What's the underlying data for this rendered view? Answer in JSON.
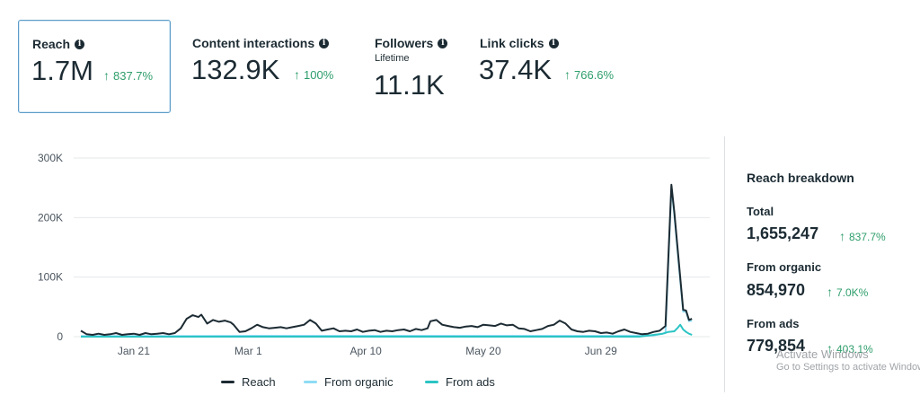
{
  "metrics": [
    {
      "label": "Reach",
      "value": "1.7M",
      "change": "837.7%",
      "selected": true
    },
    {
      "label": "Content interactions",
      "value": "132.9K",
      "change": "100%"
    },
    {
      "label": "Followers",
      "sublabel": "Lifetime",
      "value": "11.1K"
    },
    {
      "label": "Link clicks",
      "value": "37.4K",
      "change": "766.6%"
    }
  ],
  "colors": {
    "reach": "#1c2b33",
    "organic": "#8fdcf5",
    "ads": "#2cc4c4",
    "positive": "#2e9e6b"
  },
  "chart_data": {
    "type": "line",
    "xlabel": "",
    "ylabel": "",
    "y_ticks": [
      "0",
      "100K",
      "200K",
      "300K"
    ],
    "ylim": [
      0,
      300000
    ],
    "x_ticks": [
      {
        "label": "Jan 21",
        "day": 18
      },
      {
        "label": "Mar 1",
        "day": 57
      },
      {
        "label": "Apr 10",
        "day": 97
      },
      {
        "label": "May 20",
        "day": 137
      },
      {
        "label": "Jun 29",
        "day": 177
      }
    ],
    "xlim": [
      0,
      202
    ],
    "grid": true,
    "legend": "bottom",
    "series": [
      {
        "name": "Reach",
        "color": "#1c2b33",
        "points": [
          [
            0,
            10000
          ],
          [
            2,
            4000
          ],
          [
            4,
            3000
          ],
          [
            6,
            5000
          ],
          [
            8,
            3000
          ],
          [
            10,
            4000
          ],
          [
            12,
            6000
          ],
          [
            14,
            3000
          ],
          [
            16,
            4000
          ],
          [
            18,
            5000
          ],
          [
            20,
            3000
          ],
          [
            22,
            6000
          ],
          [
            24,
            4000
          ],
          [
            26,
            5000
          ],
          [
            28,
            6000
          ],
          [
            30,
            4000
          ],
          [
            32,
            6000
          ],
          [
            34,
            14000
          ],
          [
            36,
            30000
          ],
          [
            38,
            36000
          ],
          [
            40,
            33000
          ],
          [
            41,
            37000
          ],
          [
            43,
            22000
          ],
          [
            45,
            28000
          ],
          [
            47,
            25000
          ],
          [
            49,
            27000
          ],
          [
            51,
            24000
          ],
          [
            52,
            20000
          ],
          [
            54,
            8000
          ],
          [
            56,
            9000
          ],
          [
            58,
            14000
          ],
          [
            60,
            20000
          ],
          [
            62,
            16000
          ],
          [
            64,
            14000
          ],
          [
            66,
            15000
          ],
          [
            68,
            16000
          ],
          [
            70,
            14000
          ],
          [
            72,
            16000
          ],
          [
            74,
            18000
          ],
          [
            76,
            20000
          ],
          [
            78,
            28000
          ],
          [
            80,
            22000
          ],
          [
            82,
            10000
          ],
          [
            84,
            12000
          ],
          [
            86,
            14000
          ],
          [
            88,
            9000
          ],
          [
            90,
            10000
          ],
          [
            92,
            9000
          ],
          [
            94,
            12000
          ],
          [
            96,
            8000
          ],
          [
            98,
            10000
          ],
          [
            100,
            11000
          ],
          [
            102,
            8000
          ],
          [
            104,
            10000
          ],
          [
            106,
            9000
          ],
          [
            108,
            11000
          ],
          [
            110,
            12000
          ],
          [
            112,
            9000
          ],
          [
            114,
            13000
          ],
          [
            116,
            11000
          ],
          [
            118,
            14000
          ],
          [
            119,
            26000
          ],
          [
            121,
            28000
          ],
          [
            123,
            20000
          ],
          [
            125,
            18000
          ],
          [
            127,
            16000
          ],
          [
            129,
            15000
          ],
          [
            131,
            17000
          ],
          [
            133,
            18000
          ],
          [
            135,
            16000
          ],
          [
            137,
            20000
          ],
          [
            139,
            19000
          ],
          [
            141,
            18000
          ],
          [
            143,
            22000
          ],
          [
            145,
            19000
          ],
          [
            147,
            20000
          ],
          [
            149,
            14000
          ],
          [
            151,
            13000
          ],
          [
            153,
            9000
          ],
          [
            155,
            11000
          ],
          [
            157,
            13000
          ],
          [
            159,
            18000
          ],
          [
            161,
            20000
          ],
          [
            163,
            27000
          ],
          [
            165,
            22000
          ],
          [
            167,
            12000
          ],
          [
            169,
            9000
          ],
          [
            171,
            8000
          ],
          [
            173,
            10000
          ],
          [
            175,
            9000
          ],
          [
            177,
            6000
          ],
          [
            179,
            7000
          ],
          [
            181,
            5000
          ],
          [
            183,
            9000
          ],
          [
            185,
            12000
          ],
          [
            187,
            8000
          ],
          [
            189,
            6000
          ],
          [
            191,
            4000
          ],
          [
            193,
            5000
          ],
          [
            195,
            8000
          ],
          [
            197,
            10000
          ],
          [
            199,
            18000
          ],
          [
            201,
            255000
          ],
          [
            202,
            210000
          ],
          [
            204,
            100000
          ],
          [
            205,
            45000
          ],
          [
            206,
            44000
          ],
          [
            207,
            28000
          ],
          [
            208,
            30000
          ]
        ]
      },
      {
        "name": "From organic",
        "color": "#8fdcf5",
        "points": [
          [
            0,
            1000
          ],
          [
            30,
            1200
          ],
          [
            60,
            1500
          ],
          [
            90,
            1500
          ],
          [
            120,
            1500
          ],
          [
            150,
            1500
          ],
          [
            180,
            1500
          ],
          [
            195,
            2000
          ],
          [
            199,
            6000
          ],
          [
            201,
            250000
          ],
          [
            202,
            205000
          ],
          [
            204,
            95000
          ],
          [
            205,
            42000
          ],
          [
            206,
            42000
          ],
          [
            207,
            26000
          ],
          [
            208,
            27000
          ]
        ]
      },
      {
        "name": "From ads",
        "color": "#2cc4c4",
        "points": [
          [
            0,
            0
          ],
          [
            190,
            0
          ],
          [
            195,
            3000
          ],
          [
            198,
            5000
          ],
          [
            200,
            8000
          ],
          [
            202,
            9000
          ],
          [
            203,
            14000
          ],
          [
            204,
            20000
          ],
          [
            205,
            12000
          ],
          [
            206,
            8000
          ],
          [
            207,
            5000
          ],
          [
            208,
            3000
          ]
        ]
      }
    ]
  },
  "legend": [
    {
      "name": "Reach",
      "color": "#1c2b33"
    },
    {
      "name": "From organic",
      "color": "#8fdcf5"
    },
    {
      "name": "From ads",
      "color": "#2cc4c4"
    }
  ],
  "breakdown": {
    "title": "Reach breakdown",
    "rows": [
      {
        "label": "Total",
        "value": "1,655,247",
        "change": "837.7%"
      },
      {
        "label": "From organic",
        "value": "854,970",
        "change": "7.0K%"
      },
      {
        "label": "From ads",
        "value": "779,854",
        "change": "403.1%"
      }
    ]
  },
  "watermark": {
    "line1": "Activate Windows",
    "line2": "Go to Settings to activate Windows."
  }
}
